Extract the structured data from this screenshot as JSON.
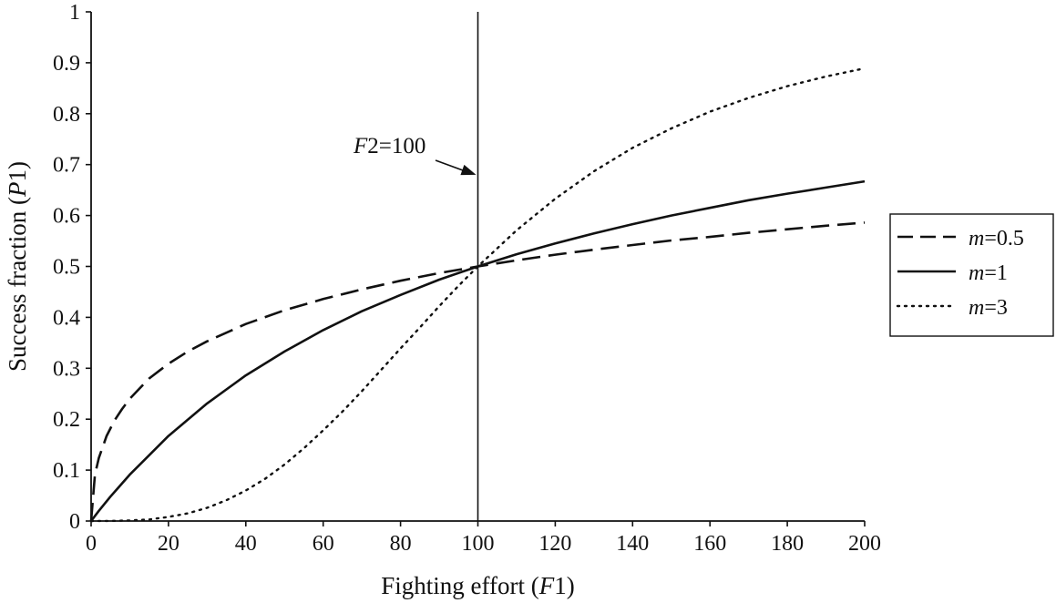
{
  "chart_data": {
    "type": "line",
    "xlabel": {
      "prefix": "Fighting effort (",
      "var": "F",
      "suffix": "1)"
    },
    "ylabel": {
      "prefix": "Success fraction (",
      "var": "P",
      "suffix": "1)"
    },
    "xlim": [
      0,
      200
    ],
    "ylim": [
      0,
      1
    ],
    "x_ticks": [
      "0",
      "20",
      "40",
      "60",
      "80",
      "100",
      "120",
      "140",
      "160",
      "180",
      "200"
    ],
    "y_ticks": [
      "0",
      "0.1",
      "0.2",
      "0.3",
      "0.4",
      "0.5",
      "0.6",
      "0.7",
      "0.8",
      "0.9",
      "1"
    ],
    "grid": false,
    "legend_position": "right",
    "reference_line": {
      "x": 100
    },
    "annotation": {
      "var": "F",
      "text": "2=100",
      "points_to": {
        "x": 100,
        "y": 0.68
      }
    },
    "series": [
      {
        "legend_var": "m",
        "legend_value": "=0.5",
        "style": "dashed",
        "x": [
          0,
          1,
          2,
          4,
          6,
          8,
          10,
          15,
          20,
          25,
          30,
          40,
          50,
          60,
          70,
          80,
          90,
          100,
          110,
          120,
          130,
          140,
          150,
          160,
          170,
          180,
          190,
          200
        ],
        "y": [
          0,
          0.091,
          0.124,
          0.167,
          0.197,
          0.22,
          0.24,
          0.28,
          0.309,
          0.333,
          0.353,
          0.387,
          0.414,
          0.436,
          0.455,
          0.472,
          0.487,
          0.5,
          0.512,
          0.523,
          0.533,
          0.542,
          0.551,
          0.558,
          0.566,
          0.573,
          0.58,
          0.586
        ]
      },
      {
        "legend_var": "m",
        "legend_value": "=1",
        "style": "solid",
        "x": [
          0,
          2,
          5,
          10,
          20,
          30,
          40,
          50,
          60,
          70,
          80,
          90,
          100,
          110,
          120,
          130,
          140,
          150,
          160,
          170,
          180,
          190,
          200
        ],
        "y": [
          0,
          0.02,
          0.048,
          0.091,
          0.167,
          0.231,
          0.286,
          0.333,
          0.375,
          0.412,
          0.444,
          0.474,
          0.5,
          0.524,
          0.545,
          0.565,
          0.583,
          0.6,
          0.615,
          0.63,
          0.643,
          0.655,
          0.667
        ]
      },
      {
        "legend_var": "m",
        "legend_value": "=3",
        "style": "dotted",
        "x": [
          0,
          5,
          10,
          15,
          20,
          25,
          30,
          35,
          40,
          45,
          50,
          55,
          60,
          65,
          70,
          75,
          80,
          85,
          90,
          95,
          100,
          110,
          120,
          130,
          140,
          150,
          160,
          170,
          180,
          190,
          200
        ],
        "y": [
          0,
          0.0001,
          0.001,
          0.003,
          0.008,
          0.015,
          0.026,
          0.041,
          0.06,
          0.083,
          0.111,
          0.143,
          0.178,
          0.215,
          0.255,
          0.297,
          0.339,
          0.38,
          0.422,
          0.462,
          0.5,
          0.571,
          0.633,
          0.687,
          0.733,
          0.771,
          0.804,
          0.831,
          0.854,
          0.873,
          0.889
        ]
      }
    ]
  }
}
